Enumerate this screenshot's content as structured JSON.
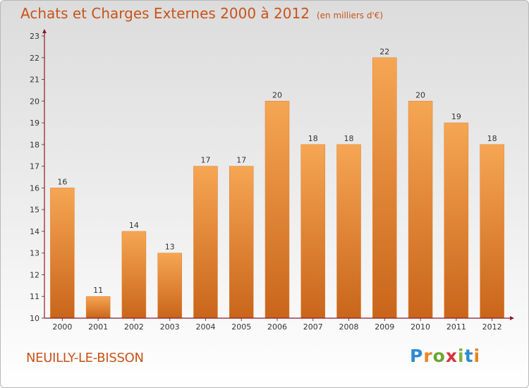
{
  "header": {
    "title": "Achats et Charges Externes 2000 à 2012",
    "unit": "(en milliers d'€)"
  },
  "commune": "NEUILLY-LE-BISSON",
  "logo": [
    "P",
    "r",
    "o",
    "x",
    "i",
    "t",
    "i"
  ],
  "colors": {
    "title": "#c8531a",
    "bar_light": "#f6a653",
    "bar_dark": "#c9651a",
    "axis": "#8b1a2a"
  },
  "chart_data": {
    "type": "bar",
    "title": "Achats et Charges Externes 2000 à 2012",
    "subtitle": "(en milliers d'€)",
    "categories": [
      "2000",
      "2001",
      "2002",
      "2003",
      "2004",
      "2005",
      "2006",
      "2007",
      "2008",
      "2009",
      "2010",
      "2011",
      "2012"
    ],
    "values": [
      16,
      11,
      14,
      13,
      17,
      17,
      20,
      18,
      18,
      22,
      20,
      19,
      18
    ],
    "data_labels": [
      "16",
      "11",
      "14",
      "13",
      "17",
      "17",
      "20",
      "18",
      "18",
      "22",
      "20",
      "19",
      "18"
    ],
    "yticks": [
      "10",
      "11",
      "12",
      "13",
      "14",
      "15",
      "16",
      "17",
      "18",
      "19",
      "20",
      "21",
      "22",
      "23"
    ],
    "ylim": [
      10,
      23
    ],
    "grid": false,
    "legend": "none"
  }
}
